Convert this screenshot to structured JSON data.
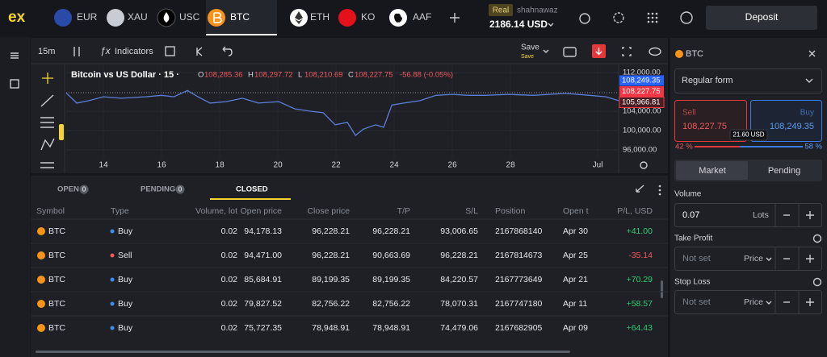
{
  "top_bar": {
    "logo": "ex",
    "tabs": [
      "EUR",
      "XAU",
      "USC",
      "BTC",
      "ETH",
      "KO",
      "AAF"
    ],
    "account_type": "Real",
    "user": "shahnawaz",
    "balance": "2186.14 USD",
    "deposit": "Deposit"
  },
  "toolbar": {
    "timeframe": "15m",
    "indicators": "Indicators",
    "save": "Save",
    "save_status": "Save"
  },
  "chart_data": {
    "type": "line",
    "title": "Bitcoin vs US Dollar · 15 ·",
    "ohlc": [
      {
        "key": "O",
        "value": "108,285.36"
      },
      {
        "key": "H",
        "value": "108,297.72"
      },
      {
        "key": "L",
        "value": "108,210.69"
      },
      {
        "key": "C",
        "value": "108,227.75"
      }
    ],
    "change": "-56.88 (-0.05%)",
    "color": "#5b7fd6",
    "grid": true,
    "x": [
      12.72,
      13.08,
      13.5,
      14,
      14.61,
      15.44,
      16,
      16.42,
      16.89,
      17.25,
      17.67,
      18.22,
      18.78,
      19.33,
      20.03,
      20.58,
      21.14,
      21.56,
      21.97,
      22.39,
      22.67,
      22.94,
      23.36,
      23.64,
      23.92,
      24.33,
      24.89,
      25.44,
      26,
      26.56,
      27.11,
      27.94,
      28.78,
      29.89,
      30.72,
      31.28,
      31.72
    ],
    "values": [
      107800,
      105700,
      106200,
      107000,
      106700,
      107000,
      107300,
      107000,
      108300,
      107000,
      105700,
      106000,
      106700,
      105700,
      106000,
      104500,
      104000,
      103700,
      101200,
      101700,
      99000,
      100300,
      101200,
      100700,
      105300,
      105700,
      106200,
      107300,
      107500,
      107300,
      107300,
      107500,
      107300,
      107700,
      107300,
      107000,
      106200
    ],
    "xlim": [
      12.72,
      31.72
    ],
    "xticks": [
      14,
      16,
      18,
      20,
      22,
      24,
      26,
      28,
      {
        "value": 31,
        "label": "Jul"
      }
    ],
    "ylim": [
      95000,
      113200
    ],
    "yticks": [
      {
        "value": 112000,
        "label": "112,000.00"
      },
      {
        "value": 104000,
        "label": "104,000.00"
      },
      {
        "value": 100000,
        "label": "100,000.00"
      },
      {
        "value": 96000,
        "label": "96,000.00"
      }
    ],
    "price_labels": [
      {
        "value": 108249.35,
        "label": "108,249.35",
        "color": "#2962ff"
      },
      {
        "value": 108227.75,
        "label": "108,227.75",
        "color": "#f23645"
      },
      {
        "value": 105966.81,
        "label": "105,966.81",
        "color": "#4a1f24"
      }
    ]
  },
  "table": {
    "tabs": [
      {
        "label": "OPEN",
        "count": "0"
      },
      {
        "label": "PENDING",
        "count": "0"
      },
      {
        "label": "CLOSED"
      }
    ],
    "columns": [
      "Symbol",
      "Type",
      "Volume, lot",
      "Open price",
      "Close price",
      "T/P",
      "S/L",
      "Position",
      "Open t",
      "P/L, USD"
    ],
    "rows": [
      [
        "BTC",
        "Buy",
        "0.02",
        "94,178.13",
        "96,228.21",
        "96,228.21",
        "93,006.65",
        "2167868140",
        "Apr 30",
        "+41.00"
      ],
      [
        "BTC",
        "Sell",
        "0.02",
        "94,471.00",
        "96,228.21",
        "90,663.69",
        "96,228.21",
        "2167814673",
        "Apr 25",
        "-35.14"
      ],
      [
        "BTC",
        "Buy",
        "0.02",
        "85,684.91",
        "89,199.35",
        "89,199.35",
        "84,220.57",
        "2167773649",
        "Apr 21",
        "+70.29"
      ],
      [
        "BTC",
        "Buy",
        "0.02",
        "79,827.52",
        "82,756.22",
        "82,756.22",
        "78,070.31",
        "2167747180",
        "Apr 11",
        "+58.57"
      ],
      [
        "BTC",
        "Buy",
        "0.02",
        "75,727.35",
        "78,948.91",
        "78,948.91",
        "74,479.06",
        "2167682905",
        "Apr 09",
        "+64.43"
      ]
    ]
  },
  "order_panel": {
    "symbol": "BTC",
    "form": "Regular form",
    "sell_label": "Sell",
    "sell_price": "108,227.75",
    "buy_label": "Buy",
    "buy_price": "108,249.35",
    "spread": "21.60 USD",
    "sentiment": {
      "values": [
        42,
        58
      ],
      "value_labels": [
        "42 %",
        "58 %"
      ]
    },
    "modes": [
      "Market",
      "Pending"
    ],
    "volume_label": "Volume",
    "volume": "0.07",
    "volume_unit": "Lots",
    "take_profit": {
      "label": "Take Profit",
      "value": "Not set",
      "unit": "Price"
    },
    "stop_loss": {
      "label": "Stop Loss",
      "value": "Not set",
      "unit": "Price"
    }
  }
}
